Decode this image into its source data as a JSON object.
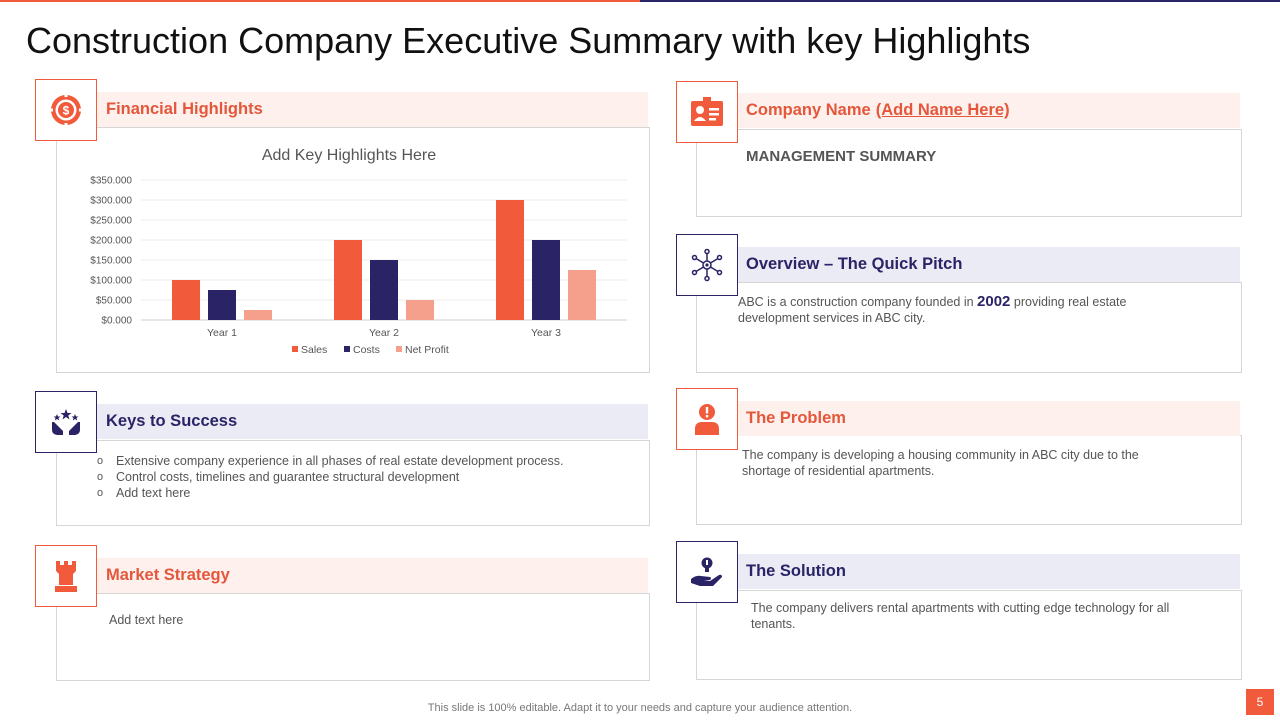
{
  "title": "Construction Company Executive Summary with key Highlights",
  "colors": {
    "accent": "#f15a3a",
    "navy": "#2a2466",
    "light_red": "#f4a08c"
  },
  "financial": {
    "heading": "Financial Highlights",
    "icon": "dollar-target-icon",
    "chart_title": "Add Key Highlights Here"
  },
  "chart_data": {
    "type": "bar",
    "title": "Add Key Highlights Here",
    "categories": [
      "Year 1",
      "Year 2",
      "Year 3"
    ],
    "series": [
      {
        "name": "Sales",
        "values": [
          100000,
          200000,
          300000
        ],
        "color": "#f15a3a"
      },
      {
        "name": "Costs",
        "values": [
          75000,
          150000,
          200000
        ],
        "color": "#2a2466"
      },
      {
        "name": "Net Profit",
        "values": [
          25000,
          50000,
          125000
        ],
        "color": "#f4a08c"
      }
    ],
    "ylim": [
      0,
      350000
    ],
    "yticks": [
      "$0.000",
      "$50.000",
      "$100.000",
      "$150.000",
      "$200.000",
      "$250.000",
      "$300.000",
      "$350.000"
    ],
    "legend_position": "bottom",
    "grid": true
  },
  "keys": {
    "heading": "Keys to Success",
    "icon": "hands-stars-icon",
    "items": [
      "Extensive company experience in all phases of real estate development  process.",
      "Control costs, timelines and guarantee structural development",
      "Add text here"
    ]
  },
  "market": {
    "heading": "Market Strategy",
    "icon": "castle-tower-icon",
    "text": "Add text here"
  },
  "company": {
    "heading": "Company Name",
    "link": "(Add Name Here)",
    "icon": "id-badge-icon",
    "subheading": "MANAGEMENT SUMMARY"
  },
  "overview": {
    "heading": "Overview – The Quick Pitch",
    "icon": "network-icon",
    "text_before": "ABC is a construction company founded in ",
    "year": "2002",
    "text_after": " providing  real estate development  services in ABC city."
  },
  "problem": {
    "heading": "The Problem",
    "icon": "person-alert-icon",
    "text": "The company is developing  a housing community in ABC city due to the shortage of residential apartments."
  },
  "solution": {
    "heading": "The Solution",
    "icon": "hand-bulb-icon",
    "text": "The company delivers rental apartments with cutting edge technology for all tenants."
  },
  "footer": "This slide is 100% editable. Adapt it to your needs and capture your audience attention.",
  "page_number": "5"
}
